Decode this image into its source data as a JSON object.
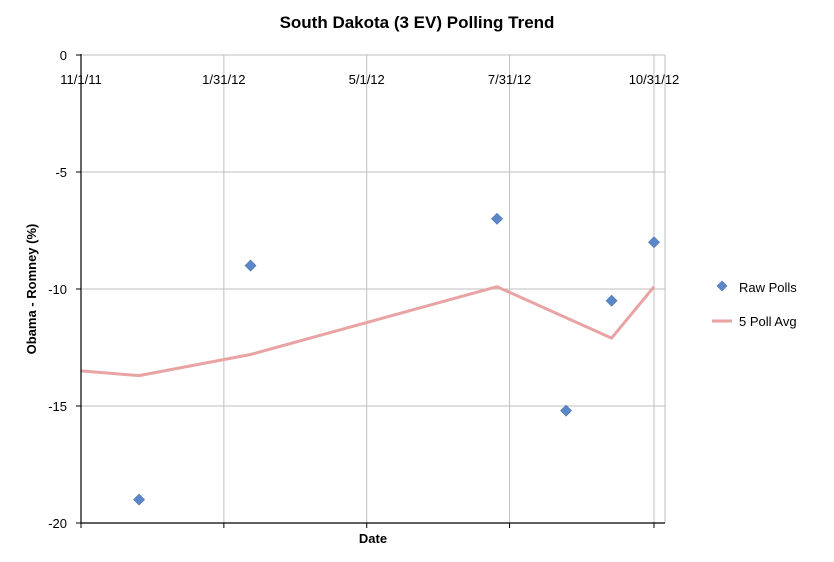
{
  "chart_data": {
    "type": "scatter",
    "title": "South Dakota (3 EV) Polling Trend",
    "xlabel": "Date",
    "ylabel": "Obama - Romney (%)",
    "ylim": [
      -20,
      0
    ],
    "y_ticks": [
      "0",
      "-5",
      "-10",
      "-15",
      "-20"
    ],
    "y_tick_values": [
      0,
      -5,
      -10,
      -15,
      -20
    ],
    "xlim": [
      "11/1/11",
      "11/12/12"
    ],
    "x_tick_labels": [
      "11/1/11",
      "1/31/12",
      "5/1/12",
      "7/31/12",
      "10/31/12"
    ],
    "x_tick_values": [
      "2011-11-01",
      "2012-01-31",
      "2012-05-01",
      "2012-07-31",
      "2012-10-31"
    ],
    "grid": true,
    "legend_position": "right",
    "series": [
      {
        "name": "Raw Polls",
        "kind": "scatter",
        "marker": "diamond",
        "color": "#5b87c8",
        "points": [
          {
            "x": "2011-12-08",
            "y": -19
          },
          {
            "x": "2012-02-17",
            "y": -9
          },
          {
            "x": "2012-07-23",
            "y": -7
          },
          {
            "x": "2012-09-05",
            "y": -15.2
          },
          {
            "x": "2012-10-04",
            "y": -10.5
          },
          {
            "x": "2012-10-31",
            "y": -8
          }
        ]
      },
      {
        "name": "5 Poll Avg",
        "kind": "line",
        "color": "#e8a3a2",
        "points": [
          {
            "x": "2011-11-01",
            "y": -13.5
          },
          {
            "x": "2011-12-08",
            "y": -13.7
          },
          {
            "x": "2012-02-17",
            "y": -12.8
          },
          {
            "x": "2012-07-23",
            "y": -9.9
          },
          {
            "x": "2012-10-04",
            "y": -12.1
          },
          {
            "x": "2012-10-31",
            "y": -9.9
          }
        ]
      }
    ]
  }
}
